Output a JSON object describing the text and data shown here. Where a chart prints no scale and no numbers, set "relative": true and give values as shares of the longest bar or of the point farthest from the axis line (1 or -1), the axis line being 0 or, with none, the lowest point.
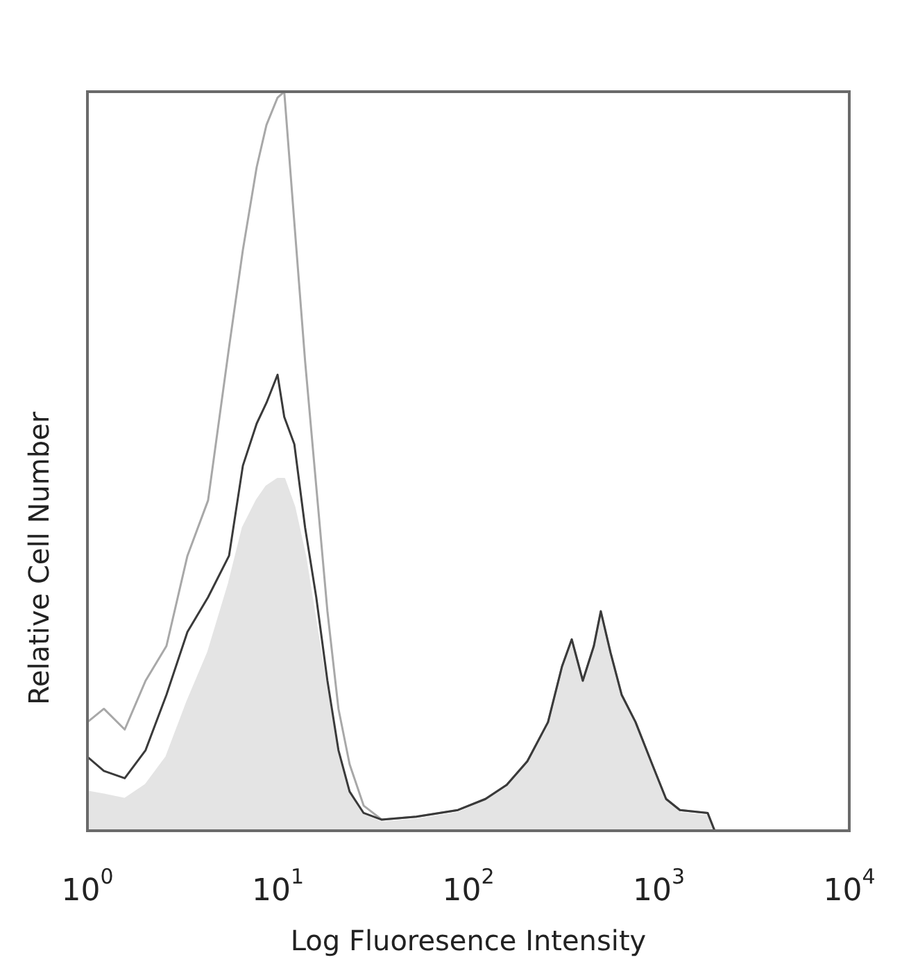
{
  "chart_data": {
    "type": "line",
    "xlabel": "Log Fluoresence Intensity",
    "ylabel": "Relative Cell Number",
    "relative": true,
    "log": "x",
    "marker": "none",
    "tick_labels": "x",
    "xlim": [
      1,
      10000
    ],
    "xticks": [
      {
        "value": 1,
        "label": "10$^{0}$"
      },
      {
        "value": 10,
        "label": "10$^{1}$"
      },
      {
        "value": 100,
        "label": "10$^{2}$"
      },
      {
        "value": 1000,
        "label": "10$^{3}$"
      },
      {
        "value": 10000,
        "label": "10$^{4}$"
      }
    ],
    "x": [
      1,
      1.22,
      1.57,
      2.02,
      2.6,
      3.35,
      4.3,
      5.54,
      6.55,
      7.74,
      8.71,
      9.96,
      10.8,
      12.2,
      13.9,
      15.9,
      18.2,
      20.8,
      23.8,
      28.2,
      35.1,
      53.3,
      88.2,
      123,
      159,
      204,
      262,
      310,
      349,
      399,
      456,
      496,
      558,
      638,
      755,
      923,
      1092,
      1291,
      1806,
      1965
    ],
    "series": [
      {
        "type": "area",
        "color": "#e4e4e4",
        "values": [
          0.053,
          0.049,
          0.043,
          0.062,
          0.1,
          0.175,
          0.241,
          0.335,
          0.41,
          0.447,
          0.466,
          0.476,
          0.476,
          0.438,
          0.372,
          0.278,
          0.184,
          0.1,
          0.053,
          0.021,
          0.011,
          0.015,
          0.024,
          0.04,
          0.058,
          0.09,
          0.14,
          0.215,
          0.25,
          0.2,
          0.245,
          0.29,
          0.235,
          0.18,
          0.14,
          0.085,
          0.04,
          0.024,
          0.02,
          0
        ]
      },
      {
        "color": "#a8a8a8",
        "values": [
          0.147,
          0.165,
          0.137,
          0.203,
          0.25,
          0.372,
          0.447,
          0.654,
          0.786,
          0.898,
          0.955,
          0.992,
          1,
          0.823,
          0.635,
          0.466,
          0.297,
          0.165,
          0.09,
          0.034,
          0.015,
          0.019,
          0.028,
          0.043,
          0.062,
          0.094,
          0.147,
          0.222,
          0.259,
          0.203,
          0.25,
          0.297,
          0.241,
          0.184,
          0.147,
          0.09,
          0.043,
          0.028,
          0.024,
          0
        ]
      },
      {
        "color": "#3a3a3a",
        "values": [
          0.1,
          0.081,
          0.071,
          0.109,
          0.184,
          0.269,
          0.316,
          0.372,
          0.494,
          0.551,
          0.579,
          0.617,
          0.56,
          0.523,
          0.41,
          0.316,
          0.203,
          0.109,
          0.053,
          0.024,
          0.015,
          0.019,
          0.028,
          0.043,
          0.062,
          0.094,
          0.147,
          0.222,
          0.259,
          0.203,
          0.25,
          0.297,
          0.241,
          0.184,
          0.147,
          0.09,
          0.043,
          0.028,
          0.024,
          0
        ]
      }
    ]
  }
}
